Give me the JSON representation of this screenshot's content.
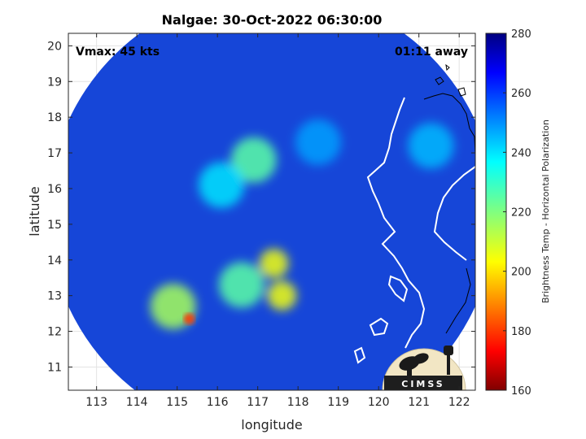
{
  "chart_data": {
    "type": "heatmap",
    "title": "Nalgae: 30-Oct-2022 06:30:00",
    "xlabel": "longitude",
    "ylabel": "latitude",
    "xlim": [
      112.3,
      122.4
    ],
    "ylim": [
      10.35,
      20.35
    ],
    "xticks": [
      113,
      114,
      115,
      116,
      117,
      118,
      119,
      120,
      121,
      122
    ],
    "yticks": [
      11,
      12,
      13,
      14,
      15,
      16,
      17,
      18,
      19,
      20
    ],
    "grid": true,
    "annotations": {
      "vmax": "Vmax: 45 kts",
      "time_offset": "01:11 away",
      "logo": "CIMSS"
    },
    "colorbar": {
      "label": "Brightness Temp - Horizontal Polarization",
      "range": [
        160,
        280
      ],
      "ticks": [
        160,
        180,
        200,
        220,
        240,
        260,
        280
      ],
      "colormap": "jet"
    },
    "swath": {
      "center": [
        117.35,
        15.3
      ],
      "radius_deg": 5.55
    },
    "features": [
      {
        "name": "eye-wall-south",
        "lon": 117.6,
        "lat": 13.0,
        "temp": 205
      },
      {
        "name": "core-southwest",
        "lon": 116.6,
        "lat": 13.3,
        "temp": 225
      },
      {
        "name": "core-north",
        "lon": 117.4,
        "lat": 13.9,
        "temp": 205
      },
      {
        "name": "band-north",
        "lon": 116.9,
        "lat": 16.8,
        "temp": 225
      },
      {
        "name": "band-north-west",
        "lon": 116.1,
        "lat": 16.1,
        "temp": 240
      },
      {
        "name": "band-northeast",
        "lon": 118.5,
        "lat": 17.3,
        "temp": 248
      },
      {
        "name": "cell-west",
        "lon": 115.3,
        "lat": 12.35,
        "temp": 180
      },
      {
        "name": "cell-southwest",
        "lon": 114.9,
        "lat": 12.7,
        "temp": 215
      },
      {
        "name": "luzon-warm-patch",
        "lon": 121.3,
        "lat": 17.2,
        "temp": 245
      }
    ]
  }
}
